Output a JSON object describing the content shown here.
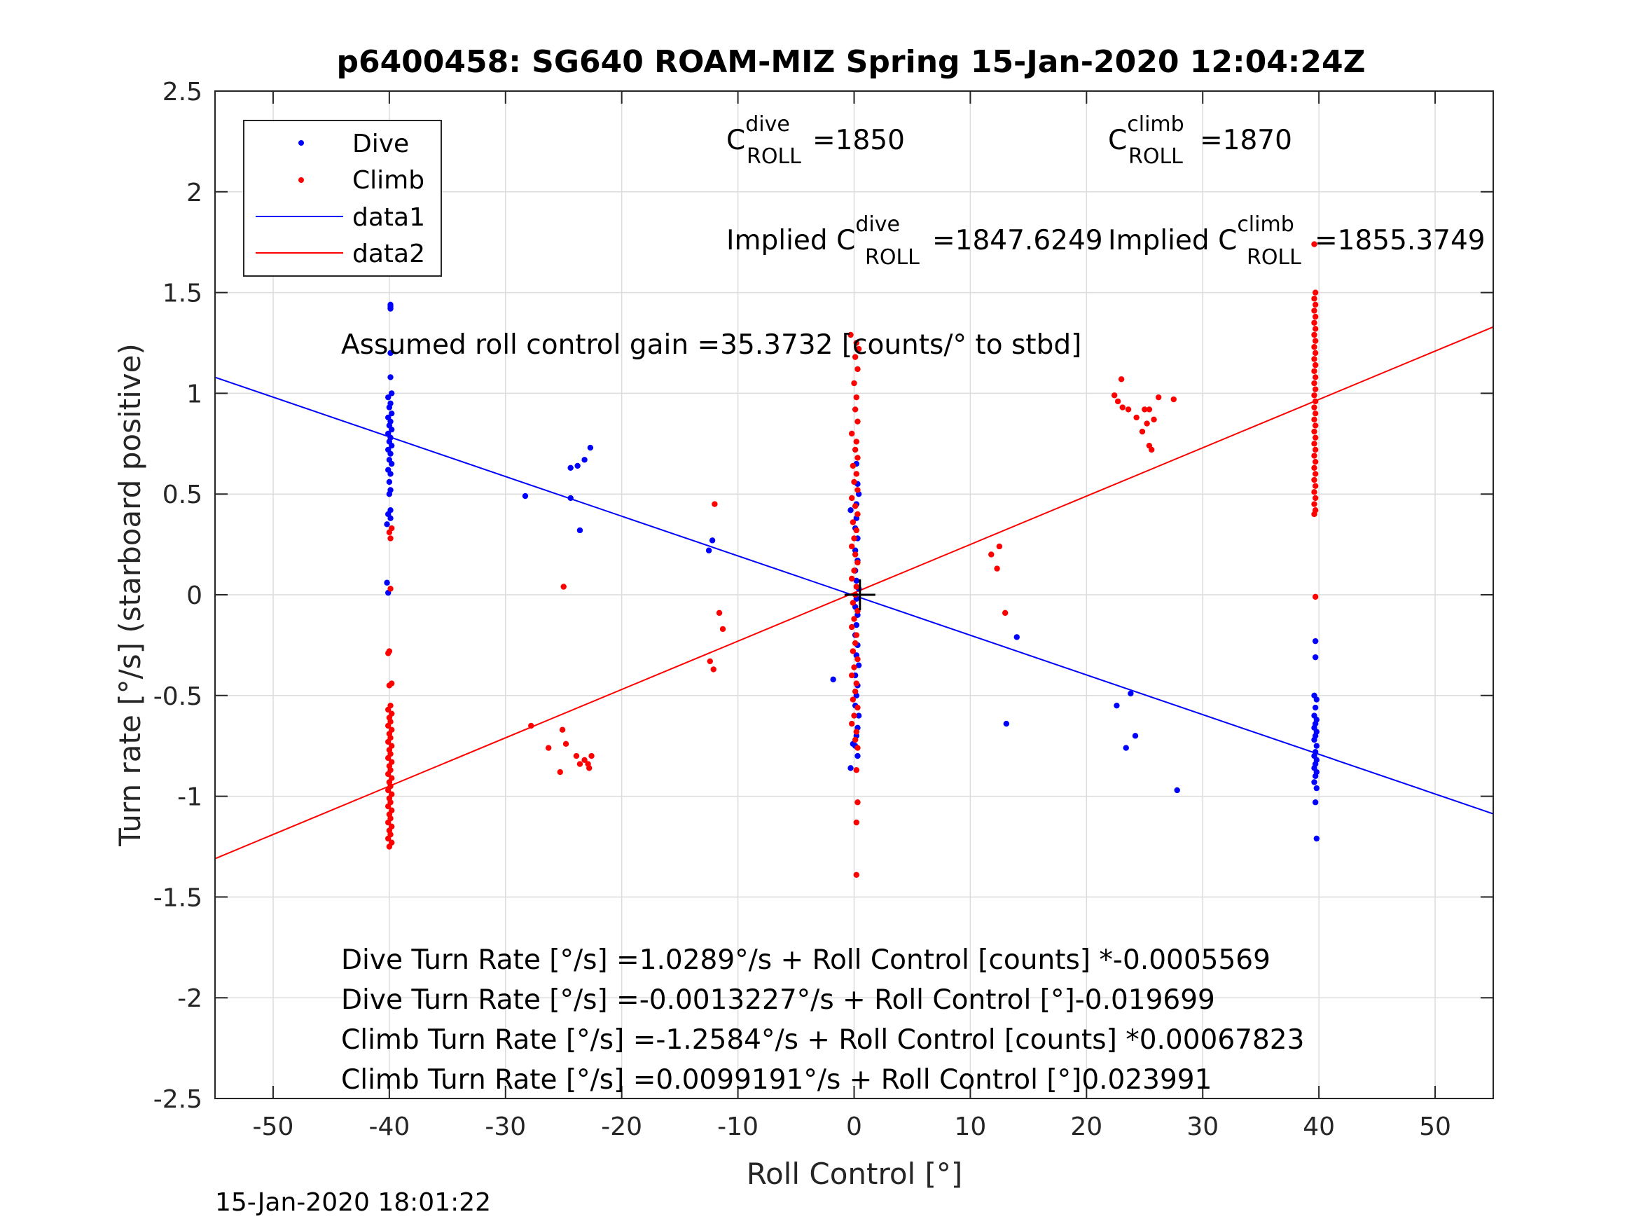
{
  "chart_data": {
    "type": "scatter",
    "title": "p6400458: SG640 ROAM-MIZ Spring 15-Jan-2020 12:04:24Z",
    "xlabel": "Roll Control [°]",
    "ylabel": "Turn rate [°/s] (starboard positive)",
    "xlim": [
      -55,
      55
    ],
    "ylim": [
      -2.5,
      2.5
    ],
    "xticks": [
      -50,
      -40,
      -30,
      -20,
      -10,
      0,
      10,
      20,
      30,
      40,
      50
    ],
    "yticks": [
      -2.5,
      -2,
      -1.5,
      -1,
      -0.5,
      0,
      0.5,
      1,
      1.5,
      2,
      2.5
    ],
    "xtick_labels": [
      "-50",
      "-40",
      "-30",
      "-20",
      "-10",
      "0",
      "10",
      "20",
      "30",
      "40",
      "50"
    ],
    "ytick_labels": [
      "-2.5",
      "-2",
      "-1.5",
      "-1",
      "-0.5",
      "0",
      "0.5",
      "1",
      "1.5",
      "2",
      "2.5"
    ],
    "grid": true,
    "legend_position": "top-left",
    "legend": [
      "Dive",
      "Climb",
      "data1",
      "data2"
    ],
    "colors": {
      "dive": "#0000ff",
      "climb": "#ff0000",
      "axes": "#262626",
      "grid": "#dcdcdc",
      "marker": "#000000"
    },
    "series": [
      {
        "name": "Dive",
        "kind": "points",
        "points": [
          [
            -39.9,
            1.44
          ],
          [
            -39.9,
            1.43
          ],
          [
            -39.9,
            1.42
          ],
          [
            -39.9,
            1.2
          ],
          [
            -39.9,
            1.08
          ],
          [
            -39.8,
            1.0
          ],
          [
            -40.1,
            0.98
          ],
          [
            -39.9,
            0.95
          ],
          [
            -40.0,
            0.93
          ],
          [
            -39.8,
            0.9
          ],
          [
            -40.1,
            0.88
          ],
          [
            -39.9,
            0.86
          ],
          [
            -40.0,
            0.84
          ],
          [
            -39.8,
            0.82
          ],
          [
            -40.1,
            0.8
          ],
          [
            -39.9,
            0.78
          ],
          [
            -40.0,
            0.76
          ],
          [
            -39.8,
            0.74
          ],
          [
            -40.1,
            0.72
          ],
          [
            -39.9,
            0.7
          ],
          [
            -40.0,
            0.67
          ],
          [
            -39.8,
            0.65
          ],
          [
            -40.1,
            0.62
          ],
          [
            -39.9,
            0.6
          ],
          [
            -40.0,
            0.56
          ],
          [
            -39.9,
            0.52
          ],
          [
            -40.0,
            0.5
          ],
          [
            -39.9,
            0.42
          ],
          [
            -40.1,
            0.4
          ],
          [
            -39.9,
            0.38
          ],
          [
            -40.2,
            0.35
          ],
          [
            -40.2,
            0.06
          ],
          [
            -40.1,
            0.01
          ],
          [
            -28.3,
            0.49
          ],
          [
            -24.4,
            0.48
          ],
          [
            -24.4,
            0.63
          ],
          [
            -23.8,
            0.64
          ],
          [
            -23.2,
            0.67
          ],
          [
            -22.7,
            0.73
          ],
          [
            -23.6,
            0.32
          ],
          [
            -12.5,
            0.22
          ],
          [
            -12.2,
            0.27
          ],
          [
            -1.8,
            -0.42
          ],
          [
            -0.3,
            -0.86
          ],
          [
            -0.1,
            -0.74
          ],
          [
            0.2,
            0.65
          ],
          [
            0.3,
            0.55
          ],
          [
            0.4,
            0.5
          ],
          [
            0.2,
            0.45
          ],
          [
            -0.3,
            0.42
          ],
          [
            0.2,
            0.38
          ],
          [
            0.1,
            0.33
          ],
          [
            0.3,
            0.28
          ],
          [
            0.1,
            0.22
          ],
          [
            0.3,
            0.17
          ],
          [
            0.1,
            0.12
          ],
          [
            0.2,
            0.07
          ],
          [
            0.4,
            0.03
          ],
          [
            0.2,
            -0.02
          ],
          [
            0.1,
            -0.06
          ],
          [
            0.3,
            -0.1
          ],
          [
            0.2,
            -0.15
          ],
          [
            0.1,
            -0.2
          ],
          [
            0.3,
            -0.25
          ],
          [
            0.2,
            -0.3
          ],
          [
            0.4,
            -0.35
          ],
          [
            0.1,
            -0.4
          ],
          [
            0.3,
            -0.45
          ],
          [
            0.2,
            -0.5
          ],
          [
            0.1,
            -0.55
          ],
          [
            0.4,
            -0.6
          ],
          [
            0.3,
            -0.66
          ],
          [
            0.2,
            -0.7
          ],
          [
            0.1,
            -0.75
          ],
          [
            0.3,
            -0.8
          ],
          [
            13.1,
            -0.64
          ],
          [
            14.0,
            -0.21
          ],
          [
            22.6,
            -0.55
          ],
          [
            23.4,
            -0.76
          ],
          [
            23.8,
            -0.49
          ],
          [
            24.2,
            -0.7
          ],
          [
            27.8,
            -0.97
          ],
          [
            39.7,
            -0.23
          ],
          [
            39.7,
            -0.31
          ],
          [
            39.6,
            -0.5
          ],
          [
            39.8,
            -0.52
          ],
          [
            39.7,
            -0.56
          ],
          [
            39.6,
            -0.6
          ],
          [
            39.8,
            -0.62
          ],
          [
            39.7,
            -0.64
          ],
          [
            39.6,
            -0.66
          ],
          [
            39.8,
            -0.68
          ],
          [
            39.7,
            -0.7
          ],
          [
            39.6,
            -0.72
          ],
          [
            39.8,
            -0.75
          ],
          [
            39.7,
            -0.78
          ],
          [
            39.6,
            -0.8
          ],
          [
            39.8,
            -0.82
          ],
          [
            39.7,
            -0.84
          ],
          [
            39.6,
            -0.86
          ],
          [
            39.8,
            -0.88
          ],
          [
            39.7,
            -0.9
          ],
          [
            39.6,
            -0.93
          ],
          [
            39.8,
            -0.96
          ],
          [
            39.7,
            -1.03
          ],
          [
            39.8,
            -1.21
          ]
        ]
      },
      {
        "name": "Climb",
        "kind": "points",
        "points": [
          [
            -39.8,
            0.33
          ],
          [
            -40.0,
            0.31
          ],
          [
            -39.9,
            0.28
          ],
          [
            -39.9,
            0.03
          ],
          [
            -40.0,
            -0.28
          ],
          [
            -40.1,
            -0.29
          ],
          [
            -39.8,
            -0.44
          ],
          [
            -40.0,
            -0.45
          ],
          [
            -39.9,
            -0.55
          ],
          [
            -40.1,
            -0.57
          ],
          [
            -39.8,
            -0.59
          ],
          [
            -40.0,
            -0.61
          ],
          [
            -39.9,
            -0.63
          ],
          [
            -40.1,
            -0.65
          ],
          [
            -39.8,
            -0.67
          ],
          [
            -40.0,
            -0.69
          ],
          [
            -39.9,
            -0.71
          ],
          [
            -40.1,
            -0.73
          ],
          [
            -39.8,
            -0.75
          ],
          [
            -40.0,
            -0.77
          ],
          [
            -39.9,
            -0.79
          ],
          [
            -40.1,
            -0.81
          ],
          [
            -39.8,
            -0.83
          ],
          [
            -40.0,
            -0.85
          ],
          [
            -39.9,
            -0.87
          ],
          [
            -40.1,
            -0.89
          ],
          [
            -39.8,
            -0.91
          ],
          [
            -40.0,
            -0.93
          ],
          [
            -39.9,
            -0.95
          ],
          [
            -40.1,
            -0.97
          ],
          [
            -39.8,
            -0.99
          ],
          [
            -40.0,
            -1.01
          ],
          [
            -39.9,
            -1.03
          ],
          [
            -40.1,
            -1.05
          ],
          [
            -39.8,
            -1.07
          ],
          [
            -40.0,
            -1.09
          ],
          [
            -39.9,
            -1.11
          ],
          [
            -40.1,
            -1.13
          ],
          [
            -39.8,
            -1.15
          ],
          [
            -40.0,
            -1.17
          ],
          [
            -39.9,
            -1.19
          ],
          [
            -40.1,
            -1.21
          ],
          [
            -39.8,
            -1.23
          ],
          [
            -40.0,
            -1.25
          ],
          [
            -27.8,
            -0.65
          ],
          [
            -26.3,
            -0.76
          ],
          [
            -25.3,
            -0.88
          ],
          [
            -25.0,
            0.04
          ],
          [
            -25.1,
            -0.67
          ],
          [
            -24.8,
            -0.74
          ],
          [
            -23.9,
            -0.8
          ],
          [
            -23.6,
            -0.84
          ],
          [
            -23.2,
            -0.82
          ],
          [
            -22.8,
            -0.86
          ],
          [
            -22.6,
            -0.8
          ],
          [
            -22.9,
            -0.84
          ],
          [
            -12.4,
            -0.33
          ],
          [
            -12.1,
            -0.37
          ],
          [
            -12.0,
            0.45
          ],
          [
            -11.6,
            -0.09
          ],
          [
            -11.3,
            -0.17
          ],
          [
            -0.3,
            1.29
          ],
          [
            0.2,
            1.25
          ],
          [
            0.4,
            1.22
          ],
          [
            0.1,
            1.18
          ],
          [
            0.3,
            1.12
          ],
          [
            0.0,
            1.05
          ],
          [
            0.2,
            0.98
          ],
          [
            0.1,
            0.92
          ],
          [
            0.3,
            0.86
          ],
          [
            -0.2,
            0.8
          ],
          [
            0.2,
            0.76
          ],
          [
            0.1,
            0.72
          ],
          [
            0.3,
            0.68
          ],
          [
            -0.1,
            0.64
          ],
          [
            0.2,
            0.6
          ],
          [
            0.0,
            0.56
          ],
          [
            0.3,
            0.52
          ],
          [
            -0.2,
            0.48
          ],
          [
            0.1,
            0.44
          ],
          [
            0.3,
            0.4
          ],
          [
            -0.1,
            0.36
          ],
          [
            0.2,
            0.32
          ],
          [
            0.0,
            0.28
          ],
          [
            -0.2,
            0.24
          ],
          [
            0.1,
            0.2
          ],
          [
            0.3,
            0.16
          ],
          [
            0.0,
            0.12
          ],
          [
            -0.2,
            0.08
          ],
          [
            0.2,
            0.04
          ],
          [
            0.1,
            0.0
          ],
          [
            -0.1,
            -0.04
          ],
          [
            0.3,
            -0.08
          ],
          [
            0.0,
            -0.12
          ],
          [
            -0.2,
            -0.16
          ],
          [
            0.2,
            -0.2
          ],
          [
            0.1,
            -0.24
          ],
          [
            -0.1,
            -0.28
          ],
          [
            0.3,
            -0.32
          ],
          [
            0.0,
            -0.36
          ],
          [
            -0.2,
            -0.4
          ],
          [
            0.2,
            -0.44
          ],
          [
            0.1,
            -0.48
          ],
          [
            -0.1,
            -0.52
          ],
          [
            0.3,
            -0.56
          ],
          [
            0.0,
            -0.6
          ],
          [
            -0.2,
            -0.64
          ],
          [
            0.2,
            -0.68
          ],
          [
            0.1,
            -0.72
          ],
          [
            0.3,
            -0.76
          ],
          [
            0.2,
            -0.87
          ],
          [
            0.3,
            -1.03
          ],
          [
            0.2,
            -1.13
          ],
          [
            0.2,
            -1.39
          ],
          [
            11.8,
            0.2
          ],
          [
            12.3,
            0.13
          ],
          [
            12.5,
            0.24
          ],
          [
            13.0,
            -0.09
          ],
          [
            22.4,
            0.99
          ],
          [
            22.7,
            0.96
          ],
          [
            23.0,
            1.07
          ],
          [
            23.1,
            0.93
          ],
          [
            23.6,
            0.92
          ],
          [
            24.3,
            0.88
          ],
          [
            24.8,
            0.81
          ],
          [
            25.0,
            0.92
          ],
          [
            25.2,
            0.85
          ],
          [
            25.4,
            0.92
          ],
          [
            25.6,
            0.72
          ],
          [
            25.4,
            0.74
          ],
          [
            25.8,
            0.87
          ],
          [
            26.2,
            0.98
          ],
          [
            27.5,
            0.97
          ],
          [
            39.6,
            1.74
          ],
          [
            39.7,
            1.5
          ],
          [
            39.6,
            1.47
          ],
          [
            39.7,
            1.44
          ],
          [
            39.6,
            1.41
          ],
          [
            39.7,
            1.38
          ],
          [
            39.6,
            1.35
          ],
          [
            39.7,
            1.32
          ],
          [
            39.6,
            1.29
          ],
          [
            39.7,
            1.26
          ],
          [
            39.6,
            1.23
          ],
          [
            39.7,
            1.2
          ],
          [
            39.6,
            1.17
          ],
          [
            39.7,
            1.14
          ],
          [
            39.6,
            1.11
          ],
          [
            39.7,
            1.08
          ],
          [
            39.6,
            1.05
          ],
          [
            39.7,
            1.02
          ],
          [
            39.6,
            0.99
          ],
          [
            39.7,
            0.96
          ],
          [
            39.6,
            0.93
          ],
          [
            39.7,
            0.9
          ],
          [
            39.6,
            0.87
          ],
          [
            39.7,
            0.84
          ],
          [
            39.6,
            0.81
          ],
          [
            39.7,
            0.78
          ],
          [
            39.6,
            0.75
          ],
          [
            39.7,
            0.72
          ],
          [
            39.6,
            0.69
          ],
          [
            39.7,
            0.66
          ],
          [
            39.6,
            0.63
          ],
          [
            39.7,
            0.6
          ],
          [
            39.6,
            0.57
          ],
          [
            39.7,
            0.54
          ],
          [
            39.6,
            0.51
          ],
          [
            39.7,
            0.48
          ],
          [
            39.6,
            0.45
          ],
          [
            39.7,
            0.42
          ],
          [
            39.6,
            0.4
          ],
          [
            39.7,
            -0.01
          ]
        ]
      },
      {
        "name": "data1",
        "kind": "line",
        "x": [
          -55,
          55
        ],
        "y": [
          1.0793,
          -1.0871
        ]
      },
      {
        "name": "data2",
        "kind": "line",
        "x": [
          -55,
          55
        ],
        "y": [
          -1.3096,
          1.3294
        ]
      }
    ],
    "center_marker": {
      "symbol": "+",
      "x": 0.5,
      "y": 0
    },
    "annotations": {
      "c_dive": {
        "pre": "C",
        "sup": "dive",
        "sub": "ROLL",
        "post": " =1850"
      },
      "c_climb": {
        "pre": "C",
        "sup": "climb",
        "sub": "ROLL",
        "post": " =1870"
      },
      "implied_dive": {
        "pre": "Implied C",
        "sup": "dive",
        "sub": "ROLL",
        "post": " =1847.6249"
      },
      "implied_climb": {
        "pre": "Implied C",
        "sup": "climb",
        "sub": "ROLL",
        "post": " =1855.3749"
      },
      "gain": "Assumed roll control gain =35.3732 [counts/° to stbd]",
      "eq1": "Dive Turn Rate [°/s] =1.0289°/s + Roll Control [counts] *-0.0005569",
      "eq2": "Dive Turn Rate [°/s] =-0.0013227°/s + Roll Control [°]-0.019699",
      "eq3": "Climb Turn Rate [°/s] =-1.2584°/s + Roll Control [counts] *0.00067823",
      "eq4": "Climb Turn Rate [°/s] =0.0099191°/s + Roll Control [°]0.023991"
    },
    "timestamp": "15-Jan-2020 18:01:22"
  }
}
